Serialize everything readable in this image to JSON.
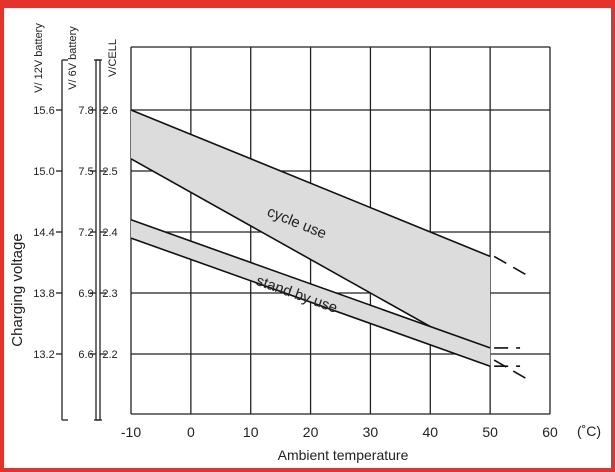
{
  "chart_data": {
    "type": "area",
    "title": "",
    "xlabel": "Ambient temperature",
    "x_unit": "(˚C)",
    "ylabel": "Charging voltage",
    "xlim": [
      -10,
      60
    ],
    "x_ticks": [
      "-10",
      "0",
      "10",
      "20",
      "30",
      "40",
      "50",
      "60"
    ],
    "ylim_v_per_cell": [
      2.1,
      2.6
    ],
    "grid": true,
    "y_axes": [
      {
        "title": "V/CELL",
        "ticks": [
          "2.6",
          "2.5",
          "2.4",
          "2.3",
          "2.2"
        ]
      },
      {
        "title": "V/ 6V battery",
        "ticks": [
          "7.8",
          "7.5",
          "7.2",
          "6.9",
          "6.6"
        ]
      },
      {
        "title": "V/ 12V battery",
        "ticks": [
          "15.6",
          "15.0",
          "14.4",
          "13.8",
          "13.2"
        ]
      }
    ],
    "series": [
      {
        "name": "cycle use",
        "x": [
          -10,
          50
        ],
        "upper": [
          2.6,
          2.36
        ],
        "lower": [
          2.52,
          2.19
        ],
        "extrapolated_x": [
          50,
          56
        ],
        "extrapolated_upper": [
          2.36,
          2.33
        ],
        "extrapolated_lower": [
          2.19,
          2.16
        ]
      },
      {
        "name": "stand by use",
        "x": [
          -10,
          50
        ],
        "upper": [
          2.42,
          2.21
        ],
        "lower": [
          2.39,
          2.18
        ],
        "extrapolated_x": [
          50,
          55
        ],
        "extrapolated_upper": [
          2.21,
          2.21
        ],
        "extrapolated_lower": [
          2.18,
          2.18
        ]
      }
    ]
  },
  "colors": {
    "frame": "#e3332a",
    "band_fill": "#dcdcdc",
    "lines": "#111111",
    "grid": "#222222"
  }
}
